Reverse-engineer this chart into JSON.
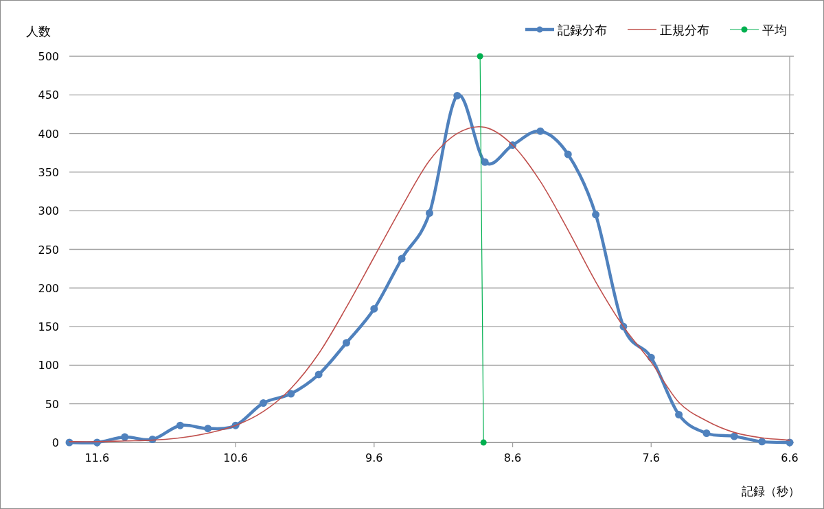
{
  "chart_data": {
    "type": "line",
    "xlabel": "記録（秒）",
    "ylabel": "人数",
    "xlim": [
      11.8,
      6.6
    ],
    "xticks": [
      11.6,
      10.6,
      9.6,
      8.6,
      7.6,
      6.6
    ],
    "ylim": [
      0,
      500
    ],
    "yticks": [
      0,
      50,
      100,
      150,
      200,
      250,
      300,
      350,
      400,
      450,
      500
    ],
    "grid": "y",
    "legend": "top right",
    "x": [
      11.8,
      11.6,
      11.4,
      11.2,
      11.0,
      10.8,
      10.6,
      10.4,
      10.2,
      10.0,
      9.8,
      9.6,
      9.4,
      9.2,
      9.0,
      8.8,
      8.6,
      8.4,
      8.2,
      8.0,
      7.8,
      7.6,
      7.4,
      7.2,
      7.0,
      6.8,
      6.6
    ],
    "series": [
      {
        "name": "記録分布",
        "color": "#4f81bd",
        "marker": "circle",
        "values": [
          0,
          0,
          7,
          4,
          22,
          18,
          22,
          51,
          63,
          88,
          129,
          173,
          238,
          297,
          449,
          363,
          385,
          403,
          373,
          295,
          150,
          110,
          36,
          12,
          8,
          1,
          0
        ]
      },
      {
        "name": "正規分布",
        "color": "#c0504d",
        "marker": "none",
        "values": [
          1,
          1,
          2,
          3,
          6,
          12,
          22,
          40,
          70,
          115,
          175,
          240,
          305,
          365,
          400,
          408,
          385,
          338,
          275,
          208,
          150,
          104,
          52,
          28,
          13,
          6,
          3
        ]
      },
      {
        "name": "平均",
        "color": "#00b050",
        "marker": "circle",
        "x": [
          8.835,
          8.81
        ],
        "values": [
          500,
          0
        ]
      }
    ]
  }
}
